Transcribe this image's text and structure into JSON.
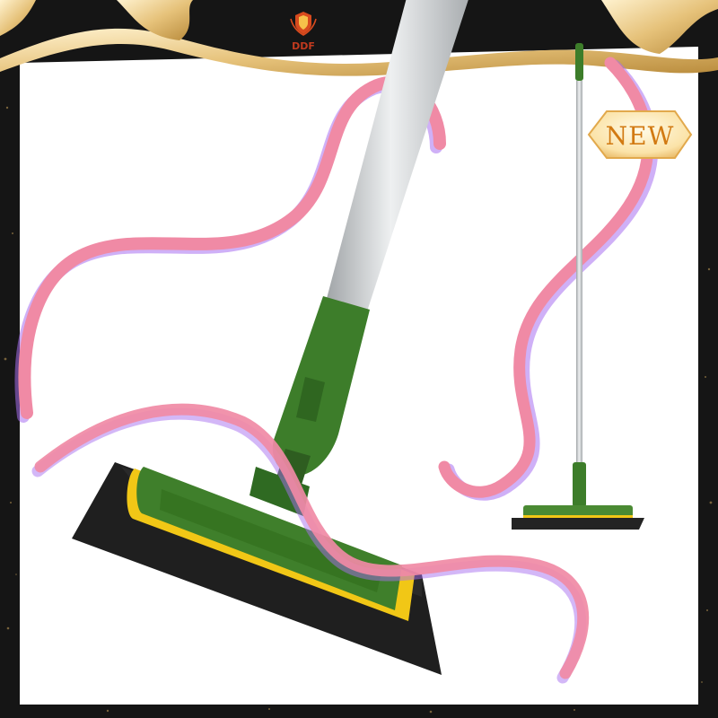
{
  "brand": {
    "logo": "shield-logo-icon",
    "name": "DDF"
  },
  "badge": {
    "label": "NEW"
  },
  "product": {
    "main_image": "floor-squeegee-closeup",
    "thumbnail_image": "floor-squeegee-full-length"
  },
  "colors": {
    "frame": "#111111",
    "gold": "#e6c27a",
    "ribbon": "#f08aa5",
    "ribbon_shadow": "#a76ff0",
    "handle": "#d2d4d6",
    "head_green": "#3d7d2a",
    "blade": "#232323",
    "edge_yellow": "#f1c716"
  }
}
